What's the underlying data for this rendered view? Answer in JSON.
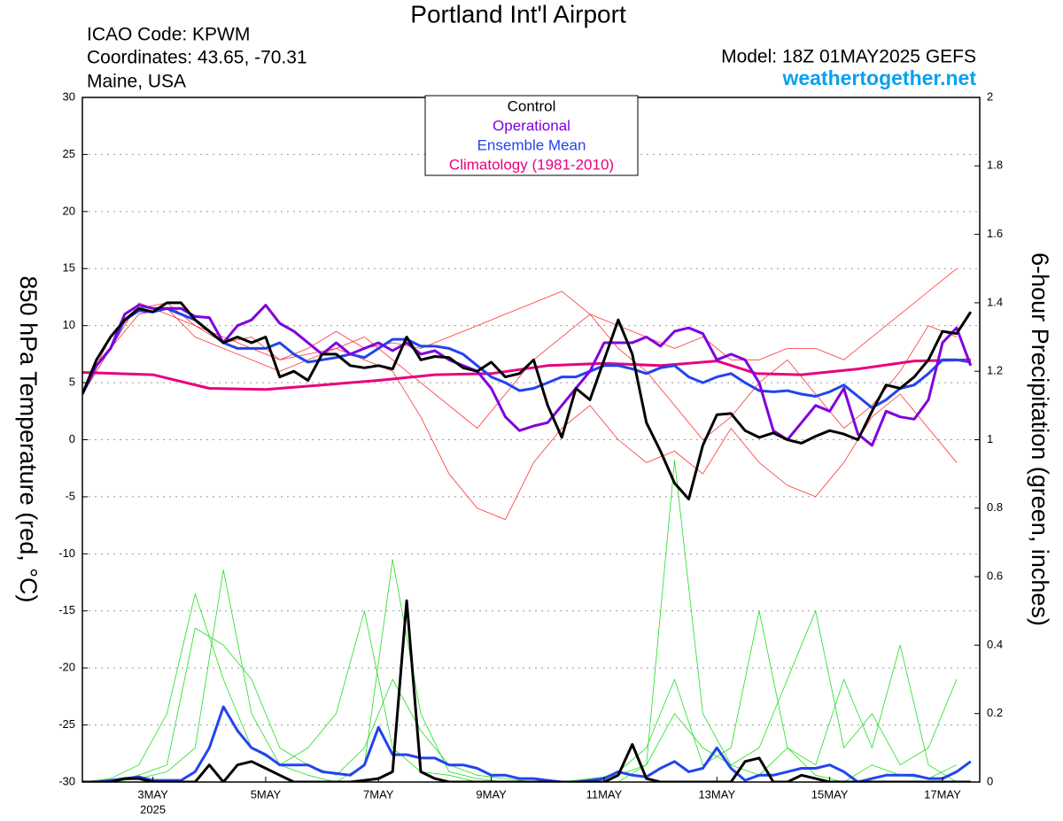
{
  "chart_data": {
    "type": "line",
    "title": "Portland Int'l Airport",
    "info_left": [
      "ICAO Code: KPWM",
      "Coordinates: 43.65, -70.31",
      "Maine, USA"
    ],
    "model": "Model: 18Z 01MAY2025 GEFS",
    "website": "weathertogether.net",
    "y_label": "850 hPa Temperature (red, °C)",
    "y2_label": "6-hour Precipitation (green, inches)",
    "x_sublabel": "2025",
    "grid": true,
    "legend": "top-center",
    "xlim": [
      1.75,
      17.66
    ],
    "xticks": [
      {
        "value": 3,
        "label": "3MAY"
      },
      {
        "value": 5,
        "label": "5MAY"
      },
      {
        "value": 7,
        "label": "7MAY"
      },
      {
        "value": 9,
        "label": "9MAY"
      },
      {
        "value": 11,
        "label": "11MAY"
      },
      {
        "value": 13,
        "label": "13MAY"
      },
      {
        "value": 15,
        "label": "15MAY"
      },
      {
        "value": 17,
        "label": "17MAY"
      }
    ],
    "ylim": [
      -30,
      30
    ],
    "yticks": [
      -30,
      -25,
      -20,
      -15,
      -10,
      -5,
      0,
      5,
      10,
      15,
      20,
      25,
      30
    ],
    "y2lim": [
      0,
      2
    ],
    "y2ticks": [
      0,
      0.2,
      0.4,
      0.6,
      0.8,
      1,
      1.2,
      1.4,
      1.6,
      1.8,
      2
    ],
    "x": [
      1.75,
      2,
      2.25,
      2.5,
      2.75,
      3,
      3.25,
      3.5,
      3.75,
      4,
      4.25,
      4.5,
      4.75,
      5,
      5.25,
      5.5,
      5.75,
      6,
      6.25,
      6.5,
      6.75,
      7,
      7.25,
      7.5,
      7.75,
      8,
      8.25,
      8.5,
      8.75,
      9,
      9.25,
      9.5,
      9.75,
      10,
      10.25,
      10.5,
      10.75,
      11,
      11.25,
      11.5,
      11.75,
      12,
      12.25,
      12.5,
      12.75,
      13,
      13.25,
      13.5,
      13.75,
      14,
      14.25,
      14.5,
      14.75,
      15,
      15.25,
      15.5,
      15.75,
      16,
      16.25,
      16.5,
      16.75,
      17,
      17.25,
      17.5
    ],
    "series": [
      {
        "name": "Control",
        "color": "#000000",
        "values": [
          4,
          7,
          9,
          10.5,
          11.5,
          11.2,
          12,
          12,
          10.5,
          9.5,
          8.5,
          9,
          8.5,
          9,
          5.5,
          6,
          5.2,
          7.5,
          7.5,
          6.5,
          6.3,
          6.5,
          6.2,
          9,
          7,
          7.3,
          7.2,
          6.3,
          6,
          6.8,
          5.5,
          5.8,
          7,
          3,
          0.2,
          4.5,
          3.5,
          7,
          10.5,
          7.5,
          1.5,
          -1,
          -3.8,
          -5.2,
          -0.5,
          2.2,
          2.3,
          0.8,
          0.2,
          0.6,
          0,
          -0.3,
          0.3,
          0.8,
          0.5,
          0,
          2.5,
          4.8,
          4.5,
          5.5,
          7,
          9.5,
          9.3,
          11.2
        ]
      },
      {
        "name": "Operational",
        "color": "#8000dd",
        "values": [
          4,
          6.5,
          8,
          11,
          11.8,
          11.5,
          11.5,
          11.5,
          10.8,
          10.7,
          8.5,
          10,
          10.5,
          11.8,
          10.2,
          9.5,
          8.5,
          7.5,
          8.5,
          7.5,
          8,
          8.5,
          7.8,
          8.5,
          7.5,
          7.8,
          7,
          6.5,
          6,
          4.5,
          2,
          0.8,
          1.2,
          1.5,
          3,
          4.5,
          6,
          8.5,
          8.5,
          8.5,
          9,
          8.2,
          9.5,
          9.8,
          9.3,
          7,
          7.5,
          7,
          5,
          0.8,
          0,
          1.5,
          3,
          2.5,
          4.5,
          0.5,
          -0.5,
          2.5,
          2,
          1.8,
          3.5,
          8.5,
          9.8,
          6.5
        ]
      },
      {
        "name": "Ensemble Mean",
        "color": "#2244ee",
        "values": [
          4,
          6.5,
          8,
          10.5,
          11.3,
          11.2,
          11.5,
          11,
          10.5,
          9.5,
          8.5,
          8,
          8,
          8,
          8.5,
          7.5,
          6.8,
          7,
          7.2,
          7.5,
          7.2,
          8,
          8.8,
          8.8,
          8.2,
          8.2,
          8,
          7.5,
          6.5,
          5.5,
          5,
          4.3,
          4.5,
          5,
          5.5,
          5.5,
          6,
          6.5,
          6.5,
          6.2,
          5.8,
          6.3,
          6.5,
          5.5,
          5,
          5.5,
          5.8,
          5,
          4.3,
          4.2,
          4.3,
          4,
          3.8,
          4.2,
          4.8,
          3.8,
          2.8,
          3.5,
          4.5,
          4.8,
          5.8,
          7,
          7,
          6.8
        ]
      },
      {
        "name": "Climatology (1981-2010)",
        "color": "#e8007f",
        "x": [
          1.75,
          3,
          4,
          5,
          6,
          7,
          8,
          9,
          10,
          11,
          12,
          13,
          13.7,
          14.5,
          15.5,
          16.5,
          17.5
        ],
        "values": [
          5.9,
          5.7,
          4.5,
          4.4,
          4.8,
          5.2,
          5.7,
          5.8,
          6.5,
          6.7,
          6.5,
          6.9,
          5.8,
          5.7,
          6.2,
          6.9,
          7
        ]
      },
      {
        "name": "Control",
        "color": "#000000",
        "axis": "y2",
        "values": [
          0,
          0,
          0,
          0.01,
          0.01,
          0,
          0,
          0,
          0,
          0.05,
          0,
          0.05,
          0.06,
          0.04,
          0.02,
          0,
          0,
          0,
          0,
          0,
          0.005,
          0.01,
          0.03,
          0.53,
          0.03,
          0.01,
          0,
          0,
          0,
          0,
          0,
          0,
          0,
          0,
          0,
          0,
          0,
          0,
          0.02,
          0.11,
          0.01,
          0,
          0,
          0,
          0,
          0,
          0,
          0.06,
          0.07,
          0,
          0,
          0.02,
          0.01,
          0,
          0,
          0,
          0,
          0,
          0,
          0,
          0,
          0,
          0,
          0
        ]
      },
      {
        "name": "Ensemble Mean",
        "color": "#2244ee",
        "axis": "y2",
        "values": [
          0,
          0,
          0.005,
          0.01,
          0.015,
          0.005,
          0.005,
          0.005,
          0.03,
          0.1,
          0.22,
          0.15,
          0.1,
          0.08,
          0.05,
          0.05,
          0.05,
          0.03,
          0.025,
          0.02,
          0.05,
          0.16,
          0.08,
          0.08,
          0.07,
          0.07,
          0.05,
          0.05,
          0.04,
          0.02,
          0.02,
          0.01,
          0.01,
          0.005,
          0,
          0,
          0.005,
          0.01,
          0.03,
          0.02,
          0.015,
          0.04,
          0.06,
          0.03,
          0.04,
          0.1,
          0.04,
          0.005,
          0.02,
          0.02,
          0.03,
          0.04,
          0.04,
          0.05,
          0.03,
          0,
          0.01,
          0.02,
          0.02,
          0.02,
          0.01,
          0.01,
          0.03,
          0.06
        ]
      },
      {
        "color": "#ff3333",
        "x": [
          1.75,
          2.25,
          2.75,
          3.25,
          3.75,
          4.25,
          4.75,
          5.25,
          5.75,
          6.25,
          6.75,
          7.25,
          7.75,
          8.25,
          8.75,
          9.25,
          9.75,
          10.25,
          10.75,
          11.25,
          11.75,
          12.25,
          12.75,
          13.25,
          13.75,
          14.25,
          14.75,
          15.25,
          15.75,
          16.25,
          16.75,
          17.25
        ],
        "values": [
          4,
          9,
          11.5,
          12,
          10,
          9,
          8,
          7,
          8,
          9.5,
          8,
          8.5,
          8,
          9,
          10,
          11,
          12,
          13,
          11,
          10,
          9,
          8,
          9,
          7,
          7,
          8,
          8,
          7,
          9,
          11,
          13,
          15
        ]
      },
      {
        "color": "#ff3333",
        "x": [
          1.75,
          2.25,
          2.75,
          3.25,
          3.75,
          4.25,
          4.75,
          5.25,
          5.75,
          6.25,
          6.75,
          7.25,
          7.75,
          8.25,
          8.75,
          9.25,
          9.75,
          10.25,
          10.75,
          11.25,
          11.75,
          12.25,
          12.75,
          13.25,
          13.75,
          14.25,
          14.75,
          15.25,
          15.75,
          16.25,
          16.75,
          17.25
        ],
        "values": [
          4,
          8,
          11,
          11.5,
          9,
          8,
          7,
          6,
          7,
          8,
          7,
          6,
          2,
          -3,
          -6,
          -7,
          -2,
          1,
          3,
          0,
          -2,
          -1,
          -3,
          1,
          -2,
          -4,
          -5,
          -2,
          2,
          4,
          1,
          -2
        ]
      },
      {
        "color": "#ff3333",
        "x": [
          1.75,
          2.25,
          2.75,
          3.25,
          3.75,
          4.25,
          4.75,
          5.25,
          5.75,
          6.25,
          6.75,
          7.25,
          7.75,
          8.25,
          8.75,
          9.25,
          9.75,
          10.25,
          10.75,
          11.25,
          11.75,
          12.25,
          12.75,
          13.25,
          13.75,
          14.25,
          14.75,
          15.25,
          15.75,
          16.25,
          16.75,
          17.25
        ],
        "values": [
          4,
          8,
          12,
          11,
          10,
          8.5,
          9,
          7,
          7.5,
          8,
          9,
          7,
          5,
          3,
          1,
          4,
          7,
          9,
          11,
          8,
          6,
          3,
          0,
          2,
          5,
          7,
          4,
          1,
          3,
          6,
          10,
          9
        ]
      },
      {
        "color": "#22dd22",
        "axis": "y2",
        "x": [
          1.75,
          2.25,
          2.75,
          3.25,
          3.75,
          4.25,
          4.75,
          5.25,
          5.75,
          6.25,
          6.75,
          7.25,
          7.75,
          8.25,
          8.75,
          9.25,
          9.75,
          10.25,
          10.75,
          11.25,
          11.75,
          12.25,
          12.75,
          13.25,
          13.75,
          14.25,
          14.75,
          15.25,
          15.75,
          16.25,
          16.75,
          17.25
        ],
        "values": [
          0,
          0,
          0.01,
          0.03,
          0.1,
          0.62,
          0.2,
          0.05,
          0.02,
          0,
          0.05,
          0.65,
          0.2,
          0.03,
          0.01,
          0,
          0,
          0,
          0,
          0,
          0.05,
          0.94,
          0.2,
          0.05,
          0.02,
          0.1,
          0.02,
          0,
          0.05,
          0.02,
          0.01,
          0.05
        ]
      },
      {
        "color": "#22dd22",
        "axis": "y2",
        "x": [
          1.75,
          2.25,
          2.75,
          3.25,
          3.75,
          4.25,
          4.75,
          5.25,
          5.75,
          6.25,
          6.75,
          7.25,
          7.75,
          8.25,
          8.75,
          9.25,
          9.75,
          10.25,
          10.75,
          11.25,
          11.75,
          12.25,
          12.75,
          13.25,
          13.75,
          14.25,
          14.75,
          15.25,
          15.75,
          16.25,
          16.75,
          17.25
        ],
        "values": [
          0,
          0.01,
          0.05,
          0.2,
          0.55,
          0.3,
          0.1,
          0.05,
          0.1,
          0.2,
          0.5,
          0.1,
          0.03,
          0.02,
          0,
          0,
          0,
          0,
          0,
          0.03,
          0.1,
          0.3,
          0.05,
          0.1,
          0.5,
          0.1,
          0.05,
          0.3,
          0.1,
          0.4,
          0.05,
          0
        ]
      },
      {
        "color": "#22dd22",
        "axis": "y2",
        "x": [
          1.75,
          2.25,
          2.75,
          3.25,
          3.75,
          4.25,
          4.75,
          5.25,
          5.75,
          6.25,
          6.75,
          7.25,
          7.75,
          8.25,
          8.75,
          9.25,
          9.75,
          10.25,
          10.75,
          11.25,
          11.75,
          12.25,
          12.75,
          13.25,
          13.75,
          14.25,
          14.75,
          15.25,
          15.75,
          16.25,
          16.75,
          17.25
        ],
        "values": [
          0,
          0,
          0.02,
          0.05,
          0.45,
          0.4,
          0.3,
          0.1,
          0.05,
          0.02,
          0.1,
          0.3,
          0.15,
          0.05,
          0.02,
          0.01,
          0,
          0,
          0.01,
          0.02,
          0.05,
          0.2,
          0.1,
          0.05,
          0.1,
          0.3,
          0.5,
          0.1,
          0.2,
          0.05,
          0.1,
          0.3
        ]
      }
    ]
  }
}
